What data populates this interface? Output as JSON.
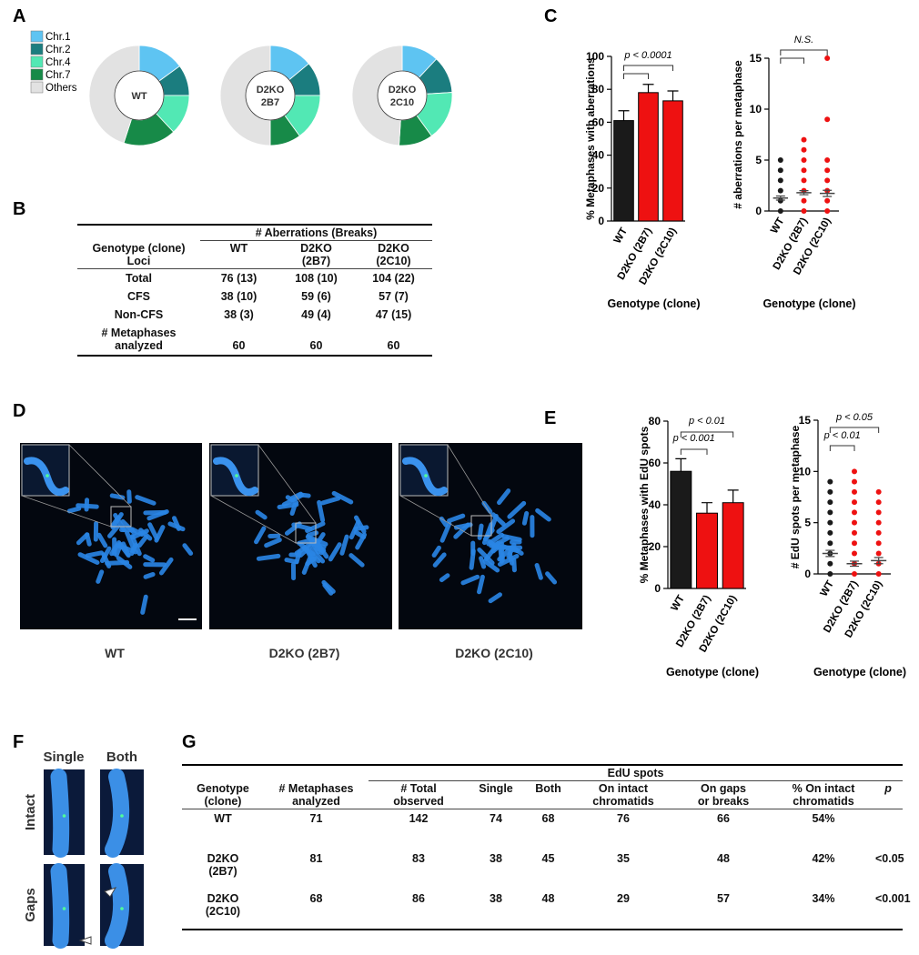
{
  "panel_labels": [
    "A",
    "B",
    "C",
    "D",
    "E",
    "F",
    "G"
  ],
  "chart_data": [
    {
      "type": "donut",
      "categories": [
        "Chr.1",
        "Chr.2",
        "Chr.4",
        "Chr.7",
        "Others"
      ],
      "colors": [
        "#5ec4f2",
        "#1b7d7f",
        "#52e8b4",
        "#178a48",
        "#e2e2e2"
      ],
      "series": [
        {
          "name": "WT",
          "values": [
            15,
            10,
            13,
            17,
            45
          ]
        },
        {
          "name": "D2KO\n2B7",
          "values": [
            14,
            11,
            15,
            10,
            50
          ]
        },
        {
          "name": "D2KO\n2C10",
          "values": [
            12,
            12,
            16,
            11,
            49
          ]
        }
      ]
    },
    {
      "type": "bar",
      "ylabel": "% Metaphases with aberrations",
      "xlabel": "Genotype (clone)",
      "categories": [
        "WT",
        "D2KO (2B7)",
        "D2KO (2C10)"
      ],
      "values": [
        61,
        78,
        73
      ],
      "errors": [
        6,
        5,
        6
      ],
      "colors": [
        "#1a1a1a",
        "#ee1111",
        "#ee1111"
      ],
      "ylim": [
        0,
        100
      ],
      "yticks": [
        0,
        20,
        40,
        60,
        80,
        100
      ],
      "annotations": [
        "p < 0.0001"
      ]
    },
    {
      "type": "dot",
      "ylabel": "# aberrations per metaphase",
      "xlabel": "Genotype (clone)",
      "categories": [
        "WT",
        "D2KO (2B7)",
        "D2KO (2C10)"
      ],
      "points": [
        [
          0,
          1,
          2,
          3,
          4,
          5
        ],
        [
          0,
          1,
          2,
          3,
          4,
          5,
          6,
          7
        ],
        [
          0,
          1,
          2,
          3,
          4,
          5,
          9,
          15
        ]
      ],
      "values": [
        1.27,
        1.8,
        1.73
      ],
      "errors": [
        0.2,
        0.2,
        0.3
      ],
      "colors": [
        "#1a1a1a",
        "#ee1111",
        "#ee1111"
      ],
      "ylim": [
        0,
        15
      ],
      "yticks": [
        0,
        5,
        10,
        15
      ],
      "annotations": [
        "N.S."
      ]
    },
    {
      "type": "bar",
      "ylabel": "% Metaphases with EdU spots",
      "xlabel": "Genotype (clone)",
      "categories": [
        "WT",
        "D2KO (2B7)",
        "D2KO (2C10)"
      ],
      "values": [
        56,
        36,
        41
      ],
      "errors": [
        6,
        5,
        6
      ],
      "colors": [
        "#1a1a1a",
        "#ee1111",
        "#ee1111"
      ],
      "ylim": [
        0,
        80
      ],
      "yticks": [
        0,
        20,
        40,
        60,
        80
      ],
      "annotations": [
        "p < 0.01",
        "p < 0.001"
      ]
    },
    {
      "type": "dot",
      "ylabel": "# EdU spots per metaphase",
      "xlabel": "Genotype (clone)",
      "categories": [
        "WT",
        "D2KO (2B7)",
        "D2KO (2C10)"
      ],
      "points": [
        [
          0,
          1,
          2,
          3,
          4,
          5,
          6,
          7,
          8,
          9
        ],
        [
          0,
          1,
          2,
          3,
          4,
          5,
          6,
          7,
          8,
          9,
          10
        ],
        [
          0,
          1,
          2,
          3,
          4,
          5,
          6,
          7,
          8
        ]
      ],
      "values": [
        2.0,
        1.0,
        1.3
      ],
      "errors": [
        0.3,
        0.25,
        0.3
      ],
      "colors": [
        "#1a1a1a",
        "#ee1111",
        "#ee1111"
      ],
      "ylim": [
        0,
        15
      ],
      "yticks": [
        0,
        5,
        10,
        15
      ],
      "annotations": [
        "p < 0.05",
        "p < 0.01"
      ]
    }
  ],
  "table_b": {
    "group_header": "# Aberrations (Breaks)",
    "columns": [
      "Genotype (clone)\nLoci",
      "WT",
      "D2KO\n(2B7)",
      "D2KO\n(2C10)"
    ],
    "rows": [
      [
        "Total",
        "76 (13)",
        "108 (10)",
        "104 (22)"
      ],
      [
        "CFS",
        "38 (10)",
        "59 (6)",
        "57 (7)"
      ],
      [
        "Non-CFS",
        "38 (3)",
        "49 (4)",
        "47 (15)"
      ],
      [
        "# Metaphases\nanalyzed",
        "60",
        "60",
        "60"
      ]
    ]
  },
  "panel_d": {
    "captions": [
      "WT",
      "D2KO (2B7)",
      "D2KO (2C10)"
    ]
  },
  "panel_f": {
    "column_labels": [
      "Single",
      "Both"
    ],
    "row_labels": [
      "Intact",
      "Gaps"
    ]
  },
  "table_g": {
    "group_header": "EdU spots",
    "columns": [
      "Genotype\n(clone)",
      "# Metaphases\nanalyzed",
      "# Total\nobserved",
      "Single",
      "Both",
      "On intact\nchromatids",
      "On gaps\nor breaks",
      "% On intact\nchromatids",
      "p"
    ],
    "rows": [
      [
        "WT",
        "71",
        "142",
        "74",
        "68",
        "76",
        "66",
        "54%",
        null
      ],
      [
        "D2KO\n(2B7)",
        "81",
        "83",
        "38",
        "45",
        "35",
        "48",
        "42%",
        "<0.05"
      ],
      [
        "D2KO\n(2C10)",
        "68",
        "86",
        "38",
        "48",
        "29",
        "57",
        "34%",
        "<0.001"
      ]
    ]
  }
}
